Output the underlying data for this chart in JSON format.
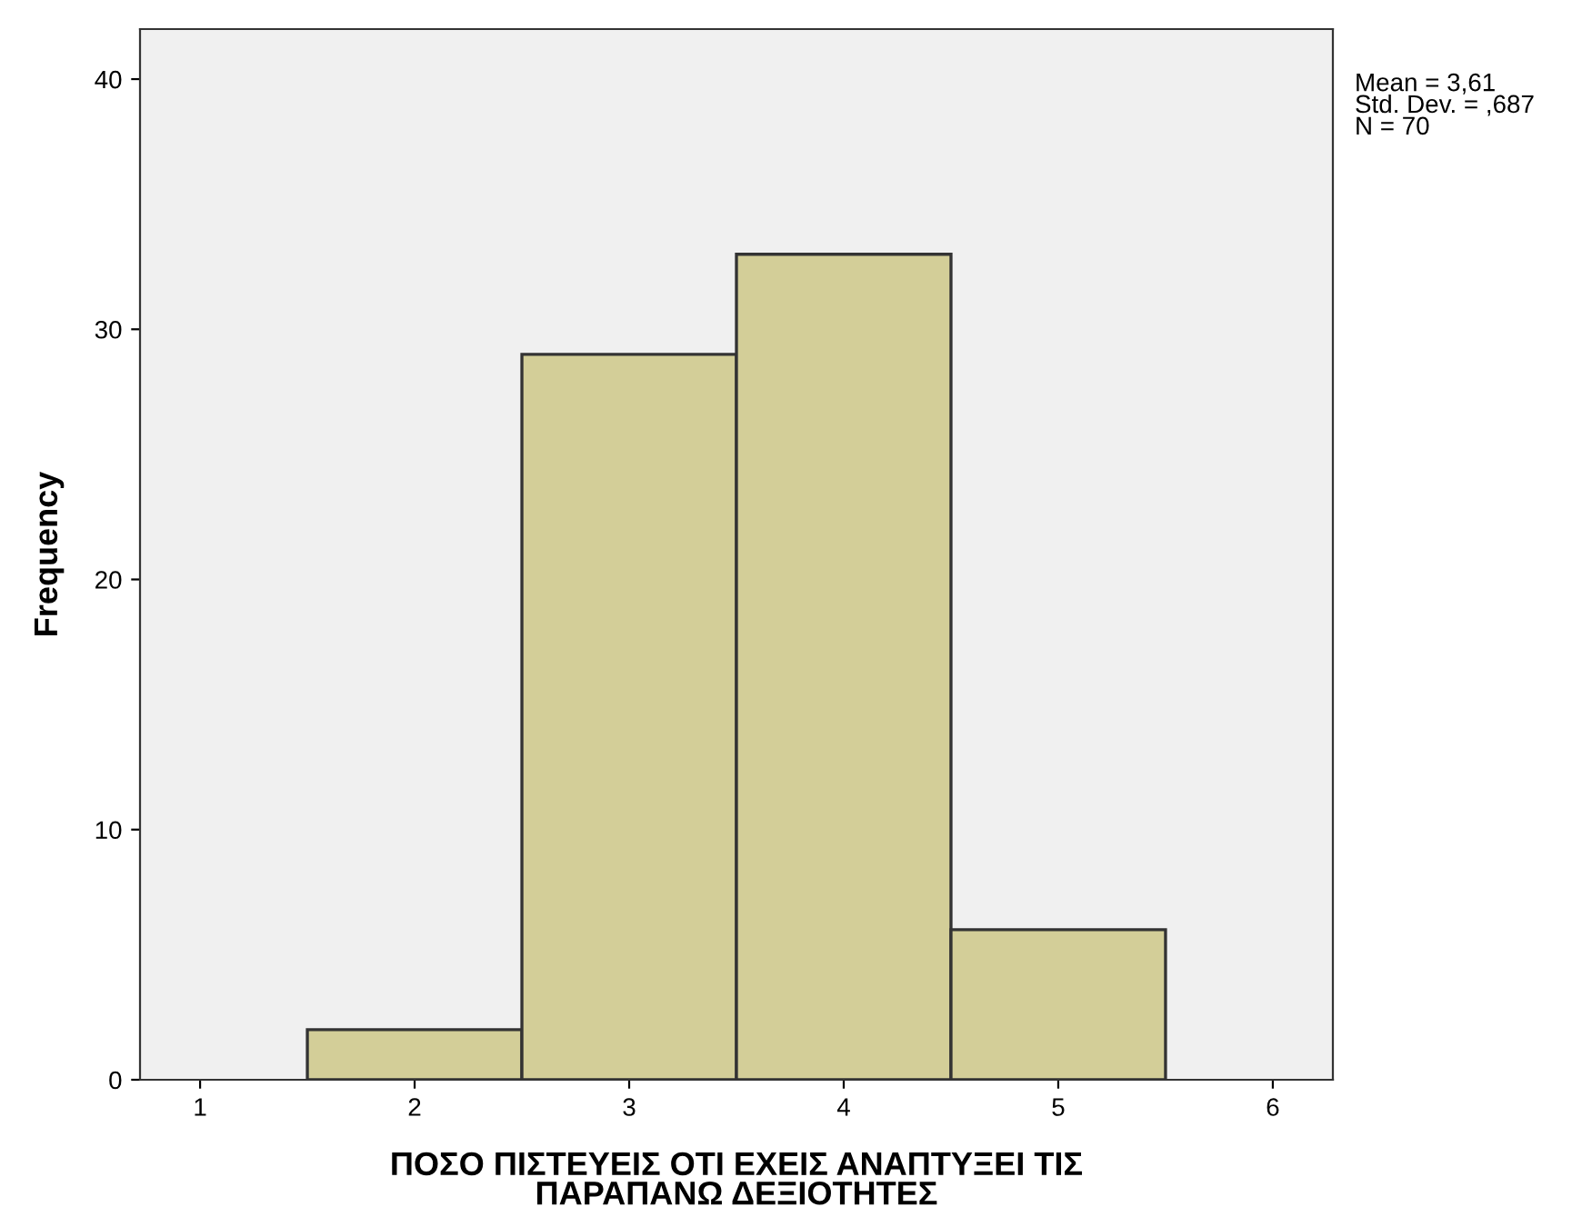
{
  "chart_data": {
    "type": "histogram",
    "xlabel": "ΠΟΣΟ ΠΙΣΤΕΥΕΙΣ ΟΤΙ ΕΧΕΙΣ ΑΝΑΠΤΥΞΕΙ ΤΙΣ\nΠΑΡΑΠΑΝΩ ΔΕΞΙΟΤΗΤΕΣ",
    "ylabel": "Frequency",
    "bins": [
      1.5,
      2.5,
      3.5,
      4.5,
      5.5
    ],
    "values": [
      2,
      29,
      33,
      6
    ],
    "color": "#d3ce98",
    "xlim": [
      0.72,
      6.28
    ],
    "ylim": [
      0,
      42
    ],
    "xticks": [
      1,
      2,
      3,
      4,
      5,
      6
    ],
    "yticks": [
      0,
      10,
      20,
      30,
      40
    ],
    "grid": false,
    "annotations": [
      "Mean = 3,61\nStd. Dev. = ,687\nN = 70"
    ]
  }
}
